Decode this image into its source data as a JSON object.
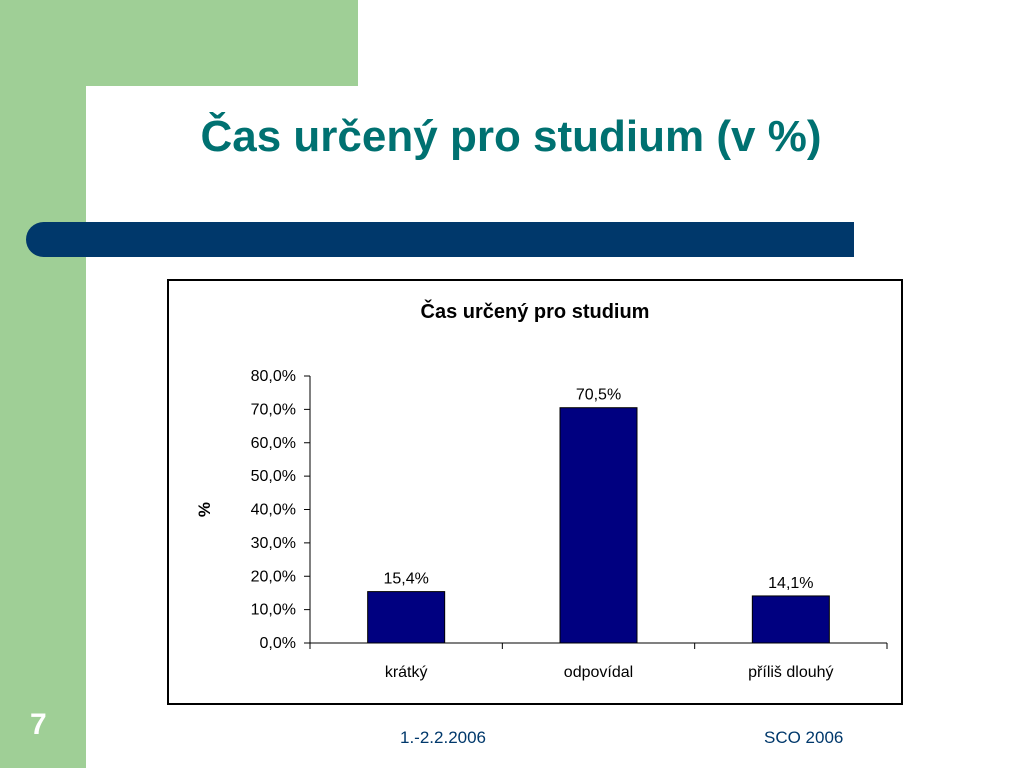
{
  "slide": {
    "title": "Čas určený pro studium (v %)",
    "number": "7",
    "footer_date": "1.-2.2.2006",
    "footer_org": "SCO 2006"
  },
  "colors": {
    "title": "#007171",
    "bar_band": "#00386b",
    "sidebar": "#9fcf96",
    "bars": "#000080"
  },
  "chart_data": {
    "type": "bar",
    "title": "Čas určený pro studium",
    "xlabel": "",
    "ylabel": "%",
    "categories": [
      "krátký",
      "odpovídal",
      "příliš dlouhý"
    ],
    "values": [
      15.4,
      70.5,
      14.1
    ],
    "value_labels": [
      "15,4%",
      "70,5%",
      "14,1%"
    ],
    "ylim": [
      0,
      80
    ],
    "yticks": [
      0,
      10,
      20,
      30,
      40,
      50,
      60,
      70,
      80
    ],
    "ytick_labels": [
      "0,0%",
      "10,0%",
      "20,0%",
      "30,0%",
      "40,0%",
      "50,0%",
      "60,0%",
      "70,0%",
      "80,0%"
    ],
    "grid": false,
    "legend": false
  }
}
